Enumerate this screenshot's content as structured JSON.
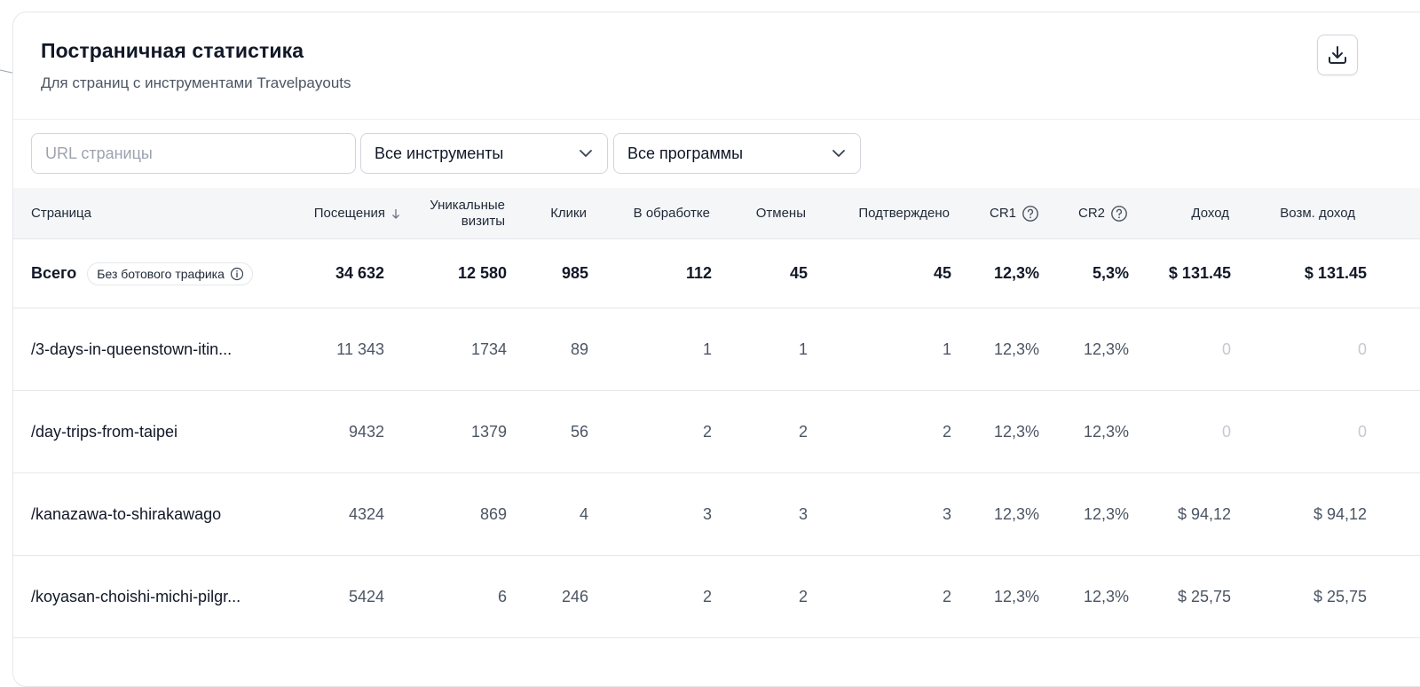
{
  "header": {
    "title": "Постраничная статистика",
    "subtitle": "Для страниц с инструментами Travelpayouts",
    "download_icon": "download-icon"
  },
  "filters": {
    "url_placeholder": "URL страницы",
    "url_value": "",
    "tools_selected": "Все инструменты",
    "programs_selected": "Все программы"
  },
  "columns": {
    "page": "Страница",
    "visits": "Посещения",
    "unique_line1": "Уникальные",
    "unique_line2": "визиты",
    "clicks": "Клики",
    "processing": "В обработке",
    "cancelled": "Отмены",
    "confirmed": "Подтверждено",
    "cr1": "CR1",
    "cr2": "CR2",
    "income": "Доход",
    "potential_income": "Возм. доход"
  },
  "total": {
    "label": "Всего",
    "badge": "Без ботового трафика",
    "visits": "34 632",
    "unique": "12 580",
    "clicks": "985",
    "processing": "112",
    "cancelled": "45",
    "confirmed": "45",
    "cr1": "12,3%",
    "cr2": "5,3%",
    "income": "$ 131.45",
    "potential_income": "$ 131.45"
  },
  "rows": [
    {
      "page": "/3-days-in-queenstown-itin...",
      "visits": "11 343",
      "unique": "1734",
      "clicks": "89",
      "processing": "1",
      "cancelled": "1",
      "confirmed": "1",
      "cr1": "12,3%",
      "cr2": "12,3%",
      "income": "0",
      "potential_income": "0"
    },
    {
      "page": "/day-trips-from-taipei",
      "visits": "9432",
      "unique": "1379",
      "clicks": "56",
      "processing": "2",
      "cancelled": "2",
      "confirmed": "2",
      "cr1": "12,3%",
      "cr2": "12,3%",
      "income": "0",
      "potential_income": "0"
    },
    {
      "page": "/kanazawa-to-shirakawago",
      "visits": "4324",
      "unique": "869",
      "clicks": "4",
      "processing": "3",
      "cancelled": "3",
      "confirmed": "3",
      "cr1": "12,3%",
      "cr2": "12,3%",
      "income": "$ 94,12",
      "potential_income": "$ 94,12"
    },
    {
      "page": "/koyasan-choishi-michi-pilgr...",
      "visits": "5424",
      "unique": "6",
      "clicks": "246",
      "processing": "2",
      "cancelled": "2",
      "confirmed": "2",
      "cr1": "12,3%",
      "cr2": "12,3%",
      "income": "$ 25,75",
      "potential_income": "$ 25,75"
    }
  ]
}
